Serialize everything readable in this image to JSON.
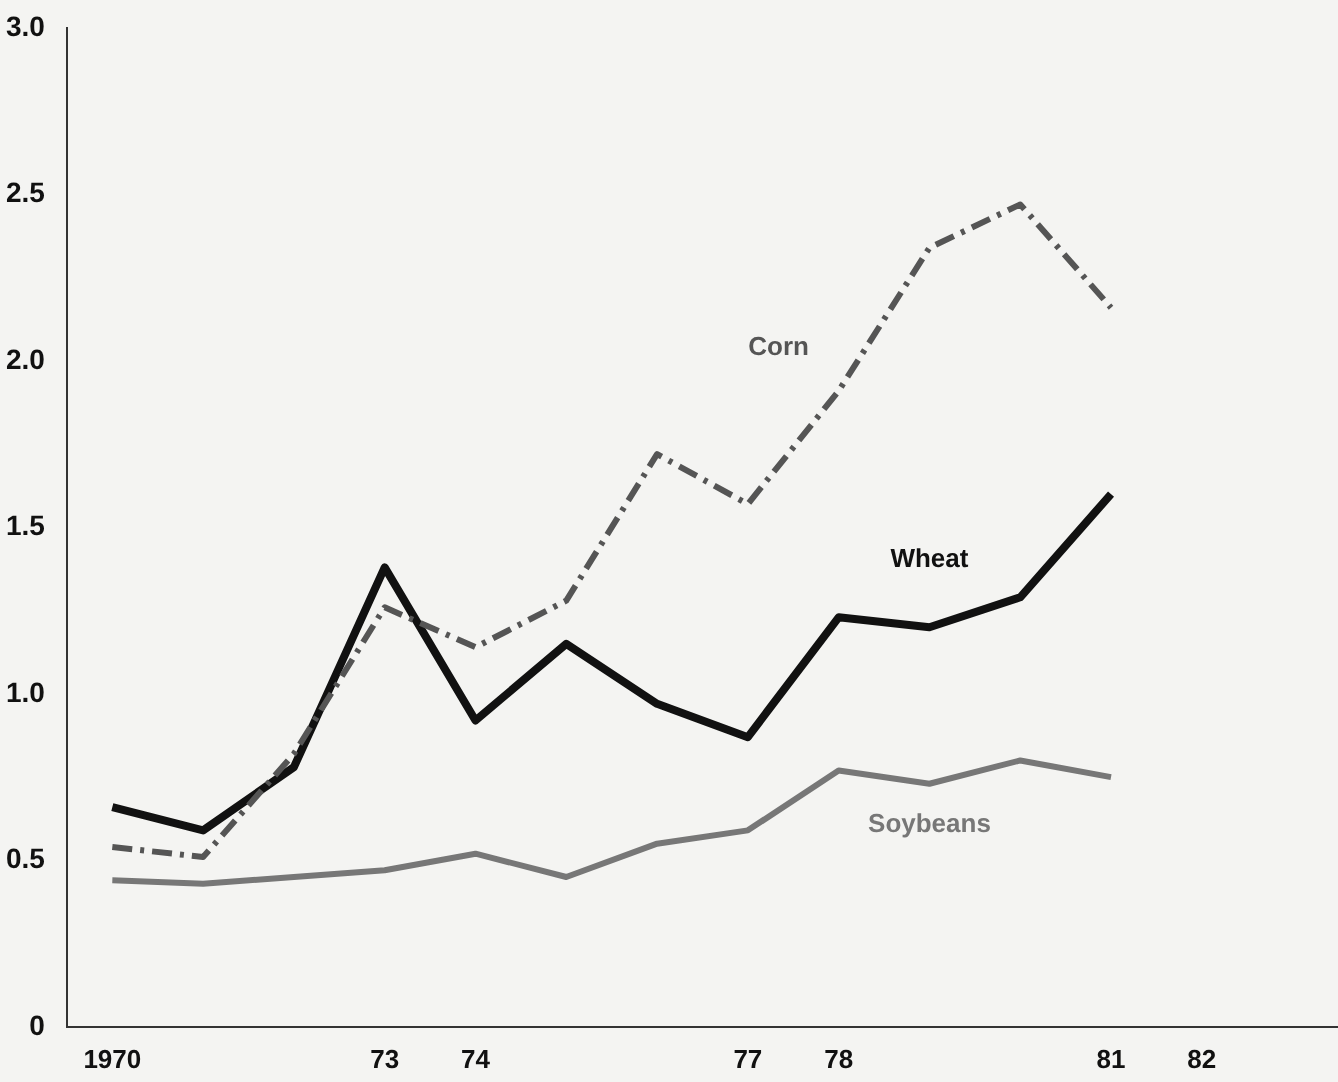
{
  "chart_data": {
    "type": "line",
    "categories": [
      "1970",
      null,
      null,
      "73",
      "74",
      null,
      null,
      "77",
      "78",
      null,
      null,
      "81",
      "82",
      null
    ],
    "series": [
      {
        "name": "Corn",
        "color": "#555555",
        "line_style": "dashed",
        "values": [
          0.54,
          0.51,
          0.82,
          1.26,
          1.14,
          1.28,
          1.72,
          1.57,
          1.91,
          2.34,
          2.47,
          2.16,
          null,
          null
        ]
      },
      {
        "name": "Wheat",
        "color": "#111111",
        "line_style": "solid",
        "values": [
          0.66,
          0.59,
          0.78,
          1.38,
          0.92,
          1.15,
          0.97,
          0.87,
          1.23,
          1.2,
          1.29,
          1.6,
          null,
          null
        ]
      },
      {
        "name": "Soybeans",
        "color": "#777777",
        "line_style": "solid",
        "values": [
          0.44,
          0.43,
          0.45,
          0.47,
          0.52,
          0.45,
          0.55,
          0.59,
          0.77,
          0.73,
          0.8,
          0.75,
          null,
          null
        ]
      }
    ],
    "ylim": [
      0,
      3.0
    ],
    "yticks": [
      {
        "value": 0,
        "label": "0"
      },
      0.5,
      {
        "value": 1,
        "label": "1.0"
      },
      1.5,
      {
        "value": 2,
        "label": "2.0"
      },
      2.5,
      {
        "value": 3,
        "label": "3.0"
      }
    ],
    "grid": false,
    "legend": false,
    "marker": "none"
  }
}
